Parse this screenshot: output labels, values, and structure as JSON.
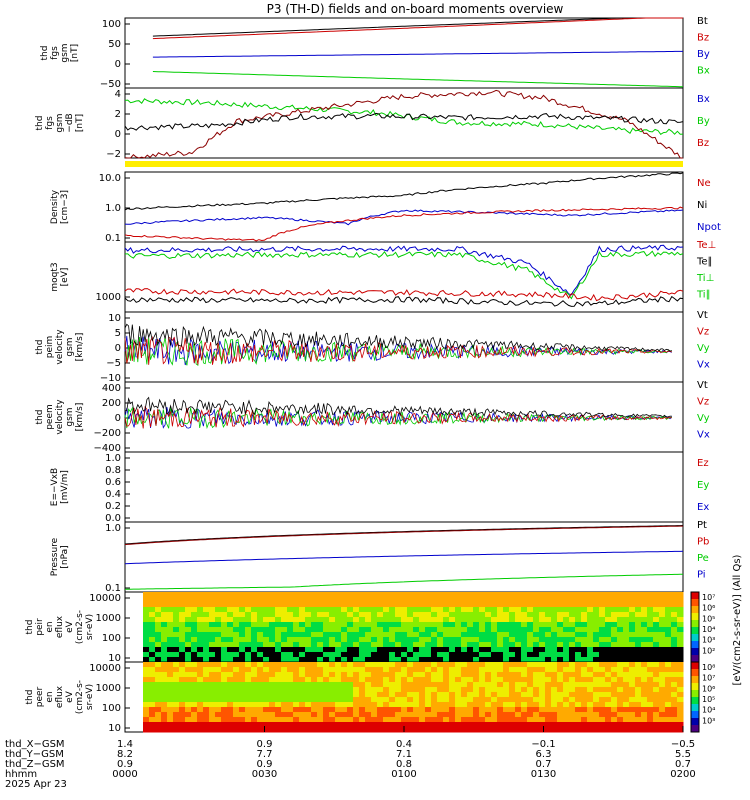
{
  "title": "P3 (TH-D) fields and on-board moments overview",
  "chart_data": [
    {
      "type": "line",
      "ylabel": [
        "thd",
        "fgs",
        "gsm",
        "[nT]"
      ],
      "yticks": [
        "100",
        "50",
        "0",
        "−50"
      ],
      "ylim": [
        -70,
        100
      ],
      "legend": [
        "Bt",
        "Bz",
        "By",
        "Bx"
      ],
      "legend_colors": [
        "#000000",
        "#cc0000",
        "#0000cc",
        "#00cc00"
      ],
      "series": [
        {
          "name": "Bt",
          "color": "#000000",
          "x": [
            0.05,
            0.5,
            1.0
          ],
          "values": [
            56,
            80,
            106
          ]
        },
        {
          "name": "Bz",
          "color": "#cc0000",
          "x": [
            0.05,
            0.5,
            1.0
          ],
          "values": [
            50,
            75,
            104
          ]
        },
        {
          "name": "By",
          "color": "#0000cc",
          "x": [
            0.05,
            1.0
          ],
          "values": [
            5,
            19
          ]
        },
        {
          "name": "Bx",
          "color": "#00cc00",
          "x": [
            0.05,
            0.5,
            1.0
          ],
          "values": [
            -30,
            -48,
            -67
          ]
        }
      ]
    },
    {
      "type": "line",
      "ylabel": [
        "thd",
        "fgs",
        "gsm",
        "−dB",
        "[nT]"
      ],
      "yticks": [
        "4",
        "2",
        "0",
        "−2"
      ],
      "ylim": [
        -3.5,
        5
      ],
      "legend": [
        "Bx",
        "By",
        "Bz"
      ],
      "legend_colors": [
        "#0000cc",
        "#00cc00",
        "#cc0000"
      ],
      "series": [
        {
          "name": "Bx",
          "color": "#00cc00",
          "x": [
            0,
            0.15,
            0.3,
            0.45,
            0.6,
            0.75,
            0.9,
            1.0
          ],
          "values": [
            3.5,
            3.2,
            2.6,
            2.0,
            0.8,
            0.6,
            -0.2,
            -0.4
          ]
        },
        {
          "name": "Bz",
          "color": "#8b0000",
          "x": [
            0,
            0.12,
            0.2,
            0.35,
            0.5,
            0.65,
            0.75,
            0.9,
            1.0
          ],
          "values": [
            -3.5,
            -2.8,
            1.0,
            2.5,
            4.0,
            4.5,
            3.8,
            1.0,
            -3.5
          ]
        },
        {
          "name": "By",
          "color": "#000000",
          "x": [
            0,
            0.15,
            0.3,
            0.45,
            0.6,
            0.75,
            0.9,
            1.0
          ],
          "values": [
            0.2,
            0.4,
            1.5,
            1.6,
            1.4,
            1.6,
            1.2,
            0.8
          ]
        }
      ]
    },
    {
      "type": "line",
      "ylabel": [
        "Density",
        "[cm−3]"
      ],
      "yticks": [
        "10.0",
        "1.0",
        "0.1"
      ],
      "ylim": [
        0.07,
        20
      ],
      "log": true,
      "legend": [
        "Ne",
        "Ni",
        "Npot"
      ],
      "legend_colors": [
        "#cc0000",
        "#000000",
        "#0000cc"
      ],
      "series": [
        {
          "name": "Ni",
          "color": "#000000",
          "x": [
            0,
            0.25,
            0.5,
            0.75,
            1.0
          ],
          "values": [
            1.0,
            1.6,
            3.0,
            8.0,
            18
          ]
        },
        {
          "name": "Npot",
          "color": "#0000cc",
          "x": [
            0,
            0.25,
            0.4,
            0.5,
            0.8,
            1.0
          ],
          "values": [
            0.3,
            0.5,
            0.3,
            0.9,
            0.6,
            0.9
          ]
        },
        {
          "name": "Ne",
          "color": "#cc0000",
          "x": [
            0,
            0.15,
            0.25,
            0.35,
            0.5,
            0.75,
            1.0
          ],
          "values": [
            0.12,
            0.09,
            0.08,
            0.3,
            0.6,
            0.9,
            1.1
          ]
        }
      ]
    },
    {
      "type": "line",
      "ylabel": [
        "moqt3",
        "[eV]"
      ],
      "yticks": [
        "1000"
      ],
      "legend": [
        "Te⊥",
        "Te∥",
        "Ti⊥",
        "Ti∥"
      ],
      "legend_colors": [
        "#cc0000",
        "#000000",
        "#00cc00",
        "#00cc00"
      ],
      "series": [
        {
          "name": "Ti⊥",
          "color": "#0000cc",
          "x": [
            0,
            0.3,
            0.6,
            0.72,
            0.8,
            0.85,
            1.0
          ],
          "values": [
            0.88,
            0.9,
            0.9,
            0.7,
            0.25,
            0.9,
            0.92
          ]
        },
        {
          "name": "Ti∥",
          "color": "#00cc00",
          "x": [
            0,
            0.3,
            0.6,
            0.72,
            0.8,
            0.85,
            1.0
          ],
          "values": [
            0.8,
            0.82,
            0.82,
            0.6,
            0.2,
            0.82,
            0.84
          ]
        },
        {
          "name": "Te⊥",
          "color": "#cc0000",
          "x": [
            0,
            0.3,
            0.5,
            0.75,
            0.85,
            1.0
          ],
          "values": [
            0.3,
            0.28,
            0.28,
            0.25,
            0.2,
            0.28
          ]
        },
        {
          "name": "Te∥",
          "color": "#000000",
          "x": [
            0,
            0.3,
            0.5,
            0.75,
            0.85,
            1.0
          ],
          "values": [
            0.18,
            0.16,
            0.18,
            0.12,
            0.12,
            0.2
          ]
        }
      ]
    },
    {
      "type": "line",
      "ylabel": [
        "thd",
        "peim",
        "velocity",
        "gsm",
        "[km/s]"
      ],
      "yticks": [
        "10",
        "5",
        "0",
        "−5",
        "−10"
      ],
      "ylim": [
        -10,
        13
      ],
      "legend": [
        "Vt",
        "Vz",
        "Vy",
        "Vx"
      ],
      "legend_colors": [
        "#000000",
        "#cc0000",
        "#00cc00",
        "#0000cc"
      ],
      "noise": [
        12,
        1
      ]
    },
    {
      "type": "line",
      "ylabel": [
        "thd",
        "peem",
        "velocity",
        "gsm",
        "[km/s]"
      ],
      "yticks": [
        "400",
        "200",
        "0",
        "−200",
        "−400"
      ],
      "ylim": [
        -400,
        420
      ],
      "legend": [
        "Vt",
        "Vz",
        "Vy",
        "Vx"
      ],
      "legend_colors": [
        "#000000",
        "#cc0000",
        "#00cc00",
        "#0000cc"
      ],
      "noise": [
        300,
        40
      ]
    },
    {
      "type": "line",
      "ylabel": [
        "E=−VxB",
        "[mV/m]"
      ],
      "yticks": [
        "1.0",
        "0.8",
        "0.6",
        "0.4",
        "0.2",
        "0.0"
      ],
      "ylim": [
        0,
        1
      ],
      "legend": [
        "Ez",
        "Ey",
        "Ex"
      ],
      "legend_colors": [
        "#cc0000",
        "#00cc00",
        "#0000cc"
      ],
      "series": []
    },
    {
      "type": "line",
      "ylabel": [
        "Pressure",
        "[nPa]"
      ],
      "yticks": [
        "1.0",
        "0.1"
      ],
      "ylim": [
        0.02,
        6
      ],
      "log": true,
      "legend": [
        "Pt",
        "Pb",
        "Pe",
        "Pi"
      ],
      "legend_colors": [
        "#000000",
        "#cc0000",
        "#00cc00",
        "#0000cc"
      ],
      "series": [
        {
          "name": "Pt",
          "color": "#000000",
          "x": [
            0,
            1.0
          ],
          "values": [
            1.0,
            4.5
          ]
        },
        {
          "name": "Pb",
          "color": "#8b0000",
          "x": [
            0,
            1.0
          ],
          "values": [
            0.95,
            4.3
          ]
        },
        {
          "name": "Pe",
          "color": "#0000cc",
          "x": [
            0,
            1.0
          ],
          "values": [
            0.2,
            0.55
          ]
        },
        {
          "name": "Pi",
          "color": "#00cc00",
          "x": [
            0,
            0.3,
            1.0
          ],
          "values": [
            0.025,
            0.03,
            0.085
          ]
        }
      ]
    },
    {
      "type": "heatmap",
      "ylabel": [
        "thd",
        "peir",
        "en",
        "eflux",
        "eV",
        "(cm2-s-",
        "sr-eV)"
      ],
      "yticks": [
        "10000",
        "1000",
        "100",
        "10"
      ],
      "colorbar": [
        "10⁷",
        "10⁶",
        "10⁵",
        "10⁴",
        "10³",
        "10²"
      ]
    },
    {
      "type": "heatmap",
      "ylabel": [
        "thd",
        "peer",
        "en",
        "eflux",
        "eV",
        "(cm2-s-",
        "sr-eV)"
      ],
      "yticks": [
        "10000",
        "1000",
        "100",
        "10"
      ],
      "colorbar": [
        "10⁸",
        "10⁷",
        "10⁶",
        "10⁵",
        "10⁴",
        "10³"
      ]
    }
  ],
  "colorbar_label": "[eV/(cm2-s-sr-eV)] (All Qs)",
  "xaxis": {
    "row_labels": [
      "thd_X−GSM",
      "thd_Y−GSM",
      "thd_Z−GSM",
      "hhmm",
      "2025 Apr 23"
    ],
    "ticks": [
      [
        "1.4",
        "8.2",
        "0.9",
        "0000"
      ],
      [
        "0.9",
        "7.7",
        "0.9",
        "0030"
      ],
      [
        "0.4",
        "7.1",
        "0.8",
        "0100"
      ],
      [
        "−0.1",
        "6.3",
        "0.7",
        "0130"
      ],
      [
        "−0.5",
        "5.5",
        "0.7",
        "0200"
      ]
    ]
  }
}
